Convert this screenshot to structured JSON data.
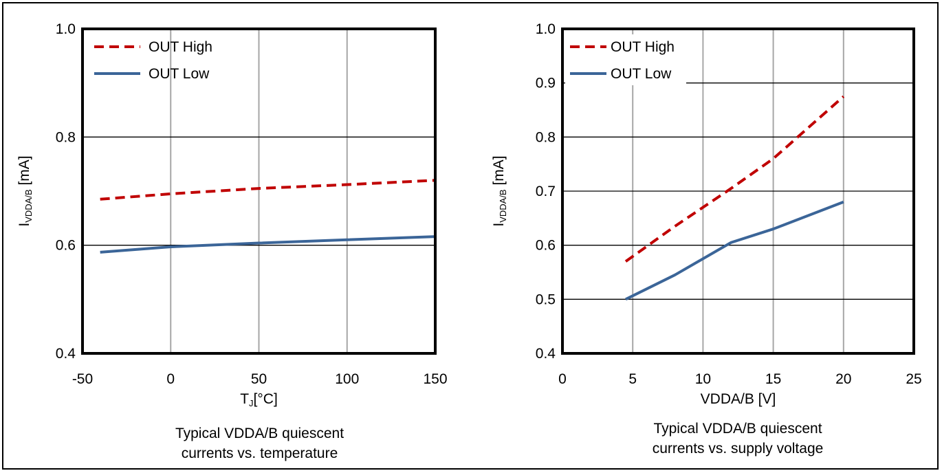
{
  "chart_data": [
    {
      "type": "line",
      "xlabel": "T",
      "xlabel_sub": "J",
      "xlabel_unit": "[°C]",
      "ylabel": "I",
      "ylabel_sub": "VDDA/B",
      "ylabel_unit": " [mA]",
      "xlim": [
        -50,
        150
      ],
      "ylim": [
        0.4,
        1.0
      ],
      "xticks": [
        "-50",
        "0",
        "50",
        "100",
        "150"
      ],
      "yticks": [
        "0.4",
        "0.6",
        "0.8",
        "1.0"
      ],
      "legend_position": "top-left",
      "caption": [
        "Typical VDDA/B quiescent",
        "currents vs. temperature"
      ],
      "series": [
        {
          "name": "OUT High",
          "color": "#c00000",
          "dash": "dashed",
          "x": [
            -40,
            0,
            50,
            100,
            150
          ],
          "y": [
            0.685,
            0.695,
            0.705,
            0.712,
            0.72
          ]
        },
        {
          "name": "OUT Low",
          "color": "#3b6598",
          "dash": "solid",
          "x": [
            -40,
            0,
            50,
            100,
            150
          ],
          "y": [
            0.587,
            0.597,
            0.604,
            0.61,
            0.616
          ]
        }
      ]
    },
    {
      "type": "line",
      "xlabel": "VDDA/B [V]",
      "ylabel": "I",
      "ylabel_sub": "VDDA/B",
      "ylabel_unit": " [mA]",
      "xlim": [
        0,
        25
      ],
      "ylim": [
        0.4,
        1.0
      ],
      "xticks": [
        "0",
        "5",
        "10",
        "15",
        "20",
        "25"
      ],
      "yticks": [
        "0.4",
        "0.5",
        "0.6",
        "0.7",
        "0.8",
        "0.9",
        "1.0"
      ],
      "legend_position": "top-left",
      "caption": [
        "Typical VDDA/B quiescent",
        "currents vs. supply voltage"
      ],
      "series": [
        {
          "name": "OUT High",
          "color": "#c00000",
          "dash": "dashed",
          "x": [
            4.5,
            8,
            12,
            15,
            20
          ],
          "y": [
            0.57,
            0.635,
            0.705,
            0.76,
            0.875
          ]
        },
        {
          "name": "OUT Low",
          "color": "#3b6598",
          "dash": "solid",
          "x": [
            4.5,
            8,
            12,
            15,
            20
          ],
          "y": [
            0.5,
            0.545,
            0.605,
            0.63,
            0.68
          ]
        }
      ]
    }
  ]
}
